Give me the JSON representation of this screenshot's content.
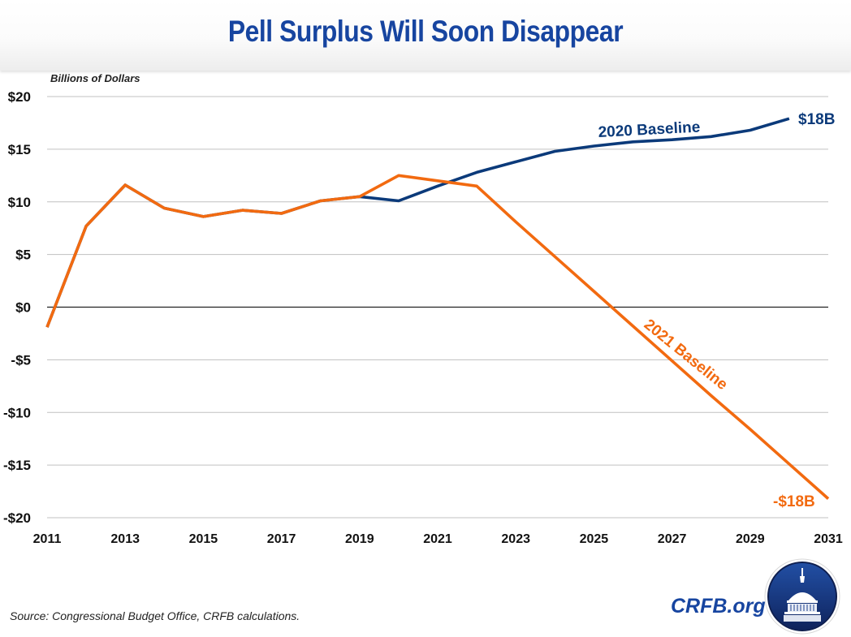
{
  "header": {
    "title": "Pell Surplus Will Soon Disappear"
  },
  "footer": {
    "source": "Source: Congressional Budget Office, CRFB calculations.",
    "brand": "CRFB.org",
    "logo_icon": "capitol-dome-icon"
  },
  "colors": {
    "title": "#1745a0",
    "series_2020": "#0b3a7a",
    "series_2021": "#f26a10",
    "gridline": "#c0c0c0",
    "zero_line": "#222222"
  },
  "chart_data": {
    "type": "line",
    "title": "Pell Surplus Will Soon Disappear",
    "ylabel": "Billions of Dollars",
    "xlabel": "",
    "ylim": [
      -20,
      20
    ],
    "xlim": [
      2011,
      2031
    ],
    "grid": true,
    "y_ticks": [
      {
        "value": 20,
        "label": "$20"
      },
      {
        "value": 15,
        "label": "$15"
      },
      {
        "value": 10,
        "label": "$10"
      },
      {
        "value": 5,
        "label": "$5"
      },
      {
        "value": 0,
        "label": "$0"
      },
      {
        "value": -5,
        "label": "-$5"
      },
      {
        "value": -10,
        "label": "-$10"
      },
      {
        "value": -15,
        "label": "-$15"
      },
      {
        "value": -20,
        "label": "-$20"
      }
    ],
    "x_ticks": [
      {
        "value": 2011,
        "label": "2011"
      },
      {
        "value": 2013,
        "label": "2013"
      },
      {
        "value": 2015,
        "label": "2015"
      },
      {
        "value": 2017,
        "label": "2017"
      },
      {
        "value": 2019,
        "label": "2019"
      },
      {
        "value": 2021,
        "label": "2021"
      },
      {
        "value": 2023,
        "label": "2023"
      },
      {
        "value": 2025,
        "label": "2025"
      },
      {
        "value": 2027,
        "label": "2027"
      },
      {
        "value": 2029,
        "label": "2029"
      },
      {
        "value": 2031,
        "label": "2031"
      }
    ],
    "series": [
      {
        "name": "2020 Baseline",
        "color": "#0b3a7a",
        "x": [
          2011,
          2012,
          2013,
          2014,
          2015,
          2016,
          2017,
          2018,
          2019,
          2020,
          2021,
          2022,
          2023,
          2024,
          2025,
          2026,
          2027,
          2028,
          2029,
          2030
        ],
        "values": [
          -1.9,
          7.7,
          11.6,
          9.4,
          8.6,
          9.2,
          8.9,
          10.1,
          10.5,
          10.1,
          11.5,
          12.8,
          13.8,
          14.8,
          15.3,
          15.7,
          15.9,
          16.2,
          16.8,
          17.9
        ],
        "end_label": "$18B"
      },
      {
        "name": "2021 Baseline",
        "color": "#f26a10",
        "x": [
          2011,
          2012,
          2013,
          2014,
          2015,
          2016,
          2017,
          2018,
          2019,
          2020,
          2021,
          2022,
          2023,
          2024,
          2025,
          2026,
          2027,
          2028,
          2029,
          2030,
          2031
        ],
        "values": [
          -1.9,
          7.7,
          11.6,
          9.4,
          8.6,
          9.2,
          8.9,
          10.1,
          10.5,
          12.5,
          12.0,
          11.5,
          8.1,
          4.8,
          1.5,
          -1.8,
          -5.1,
          -8.4,
          -11.6,
          -14.9,
          -18.2
        ],
        "end_label": "-$18B"
      }
    ]
  }
}
